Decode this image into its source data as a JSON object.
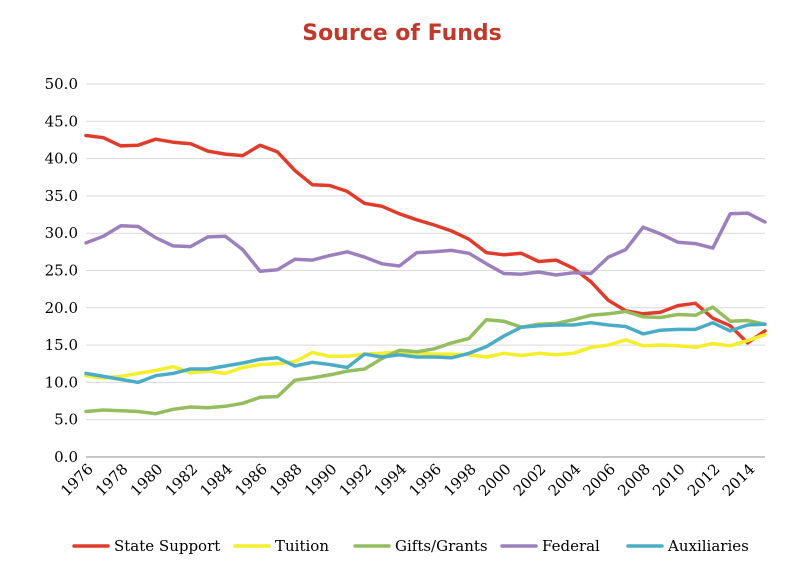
{
  "chart_data": {
    "type": "line",
    "title": "Source of Funds",
    "xlabel": "",
    "ylabel": "",
    "ylim": [
      0,
      50
    ],
    "yticks": [
      "0.0",
      "5.0",
      "10.0",
      "15.0",
      "20.0",
      "25.0",
      "30.0",
      "35.0",
      "40.0",
      "45.0",
      "50.0"
    ],
    "x": [
      1976,
      1977,
      1978,
      1979,
      1980,
      1981,
      1982,
      1983,
      1984,
      1985,
      1986,
      1987,
      1988,
      1989,
      1990,
      1991,
      1992,
      1993,
      1994,
      1995,
      1996,
      1997,
      1998,
      1999,
      2000,
      2001,
      2002,
      2003,
      2004,
      2005,
      2006,
      2007,
      2008,
      2009,
      2010,
      2011,
      2012,
      2013,
      2014,
      2015
    ],
    "xtick_labels": [
      "1976",
      "1978",
      "1980",
      "1982",
      "1984",
      "1986",
      "1988",
      "1990",
      "1992",
      "1994",
      "1996",
      "1998",
      "2000",
      "2002",
      "2004",
      "2006",
      "2008",
      "2010",
      "2012",
      "2014"
    ],
    "grid": true,
    "legend_position": "bottom",
    "series": [
      {
        "name": "State Support",
        "color": "#e03c2c",
        "values": [
          43.1,
          42.8,
          41.7,
          41.8,
          42.6,
          42.2,
          42.0,
          41.0,
          40.6,
          40.4,
          41.8,
          40.9,
          38.4,
          36.5,
          36.4,
          35.6,
          34.0,
          33.6,
          32.6,
          31.8,
          31.1,
          30.3,
          29.2,
          27.4,
          27.1,
          27.3,
          26.2,
          26.4,
          25.3,
          23.5,
          21.0,
          19.6,
          19.2,
          19.4,
          20.3,
          20.6,
          18.6,
          17.6,
          15.3,
          16.9
        ]
      },
      {
        "name": "Tuition",
        "color": "#f5ee2b",
        "values": [
          10.9,
          10.6,
          10.8,
          11.2,
          11.6,
          12.1,
          11.3,
          11.5,
          11.2,
          12.0,
          12.4,
          12.5,
          12.8,
          14.0,
          13.5,
          13.5,
          13.8,
          13.9,
          14.1,
          13.9,
          13.8,
          13.8,
          13.7,
          13.4,
          13.9,
          13.6,
          13.9,
          13.7,
          13.9,
          14.7,
          15.0,
          15.7,
          14.9,
          15.0,
          14.9,
          14.7,
          15.2,
          14.9,
          15.6,
          16.4
        ]
      },
      {
        "name": "Gifts/Grants",
        "color": "#94bd5e",
        "values": [
          6.1,
          6.3,
          6.2,
          6.1,
          5.8,
          6.4,
          6.7,
          6.6,
          6.8,
          7.2,
          8.0,
          8.1,
          10.3,
          10.6,
          11.0,
          11.5,
          11.8,
          13.2,
          14.3,
          14.1,
          14.5,
          15.3,
          15.9,
          18.4,
          18.2,
          17.4,
          17.8,
          17.9,
          18.4,
          19.0,
          19.2,
          19.5,
          18.8,
          18.7,
          19.1,
          19.0,
          20.1,
          18.2,
          18.3,
          17.8
        ]
      },
      {
        "name": "Federal",
        "color": "#9c80be",
        "values": [
          28.7,
          29.6,
          31.0,
          30.9,
          29.4,
          28.3,
          28.2,
          29.5,
          29.6,
          27.8,
          24.9,
          25.1,
          26.5,
          26.4,
          27.0,
          27.5,
          26.8,
          25.9,
          25.6,
          27.4,
          27.5,
          27.7,
          27.3,
          25.9,
          24.6,
          24.5,
          24.8,
          24.4,
          24.7,
          24.6,
          26.8,
          27.8,
          30.8,
          29.9,
          28.8,
          28.6,
          28.0,
          32.6,
          32.7,
          31.5
        ]
      },
      {
        "name": "Auxiliaries",
        "color": "#4bacc6",
        "values": [
          11.2,
          10.8,
          10.4,
          10.0,
          10.9,
          11.2,
          11.8,
          11.8,
          12.2,
          12.6,
          13.1,
          13.3,
          12.2,
          12.7,
          12.4,
          12.0,
          13.8,
          13.4,
          13.7,
          13.4,
          13.4,
          13.3,
          13.9,
          14.8,
          16.2,
          17.4,
          17.6,
          17.7,
          17.7,
          18.0,
          17.7,
          17.5,
          16.5,
          17.0,
          17.1,
          17.1,
          18.0,
          16.9,
          17.7,
          17.8
        ]
      }
    ]
  }
}
